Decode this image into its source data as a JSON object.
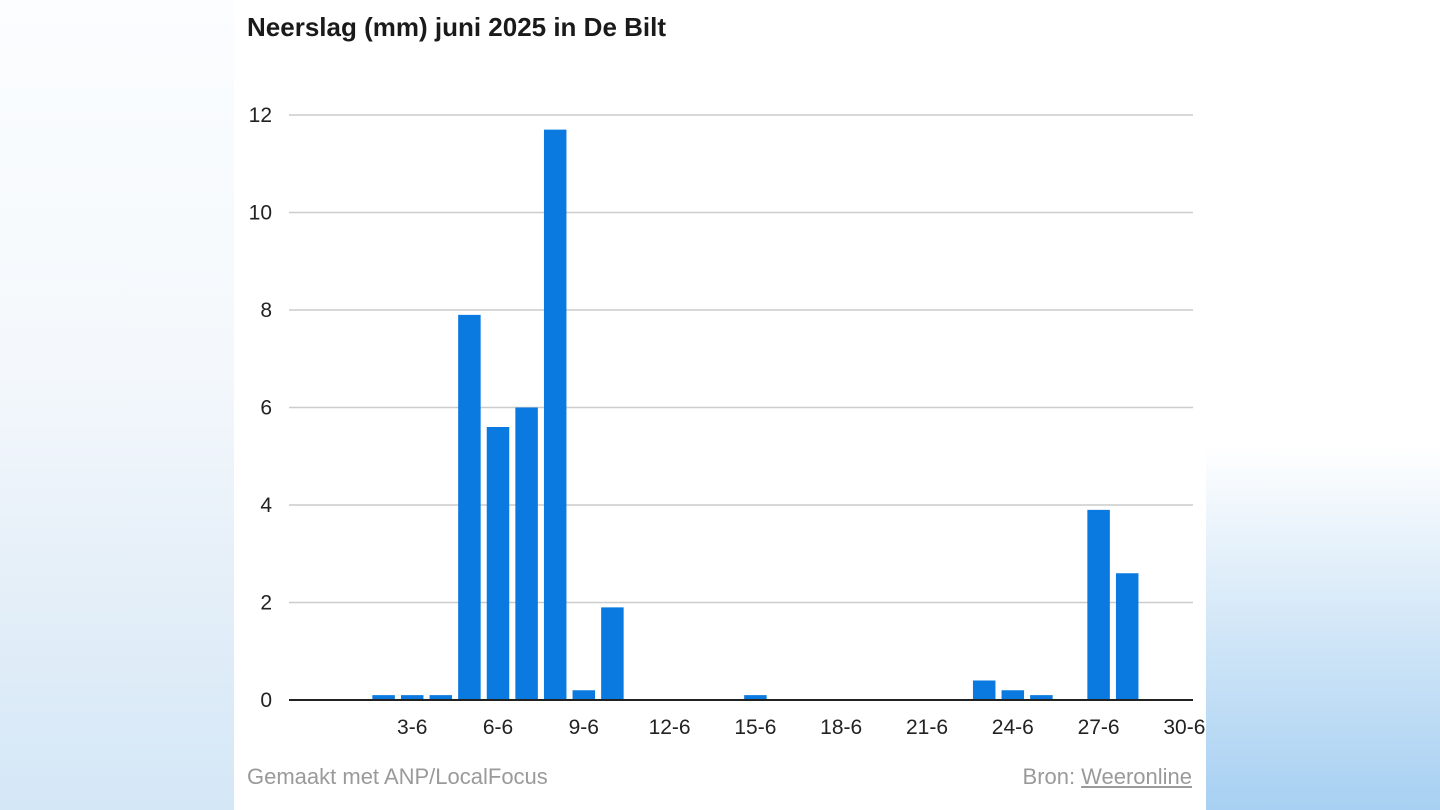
{
  "chart_data": {
    "type": "bar",
    "title": "Neerslag (mm) juni 2025 in De Bilt",
    "xlabel": "",
    "ylabel": "",
    "ylim": [
      0,
      12
    ],
    "yticks": [
      0,
      2,
      4,
      6,
      8,
      10,
      12
    ],
    "grid": true,
    "bar_color": "#0b7ae0",
    "categories": [
      "1-6",
      "2-6",
      "3-6",
      "4-6",
      "5-6",
      "6-6",
      "7-6",
      "8-6",
      "9-6",
      "10-6",
      "11-6",
      "12-6",
      "13-6",
      "14-6",
      "15-6",
      "16-6",
      "17-6",
      "18-6",
      "19-6",
      "20-6",
      "21-6",
      "22-6",
      "23-6",
      "24-6",
      "25-6",
      "26-6",
      "27-6",
      "28-6",
      "29-6",
      "30-6"
    ],
    "xtick_labels": [
      "3-6",
      "6-6",
      "9-6",
      "12-6",
      "15-6",
      "18-6",
      "21-6",
      "24-6",
      "27-6",
      "30-6"
    ],
    "values": [
      0,
      0.1,
      0.1,
      0.1,
      7.9,
      5.6,
      6.0,
      11.7,
      0.2,
      1.9,
      0,
      0,
      0,
      0,
      0.1,
      0,
      0,
      0,
      0,
      0,
      0,
      0,
      0.4,
      0.2,
      0.1,
      0,
      3.9,
      2.6,
      0,
      0
    ]
  },
  "footer": {
    "made_with": "Gemaakt met ANP/LocalFocus",
    "source_label": "Bron:",
    "source_name": "Weeronline"
  }
}
